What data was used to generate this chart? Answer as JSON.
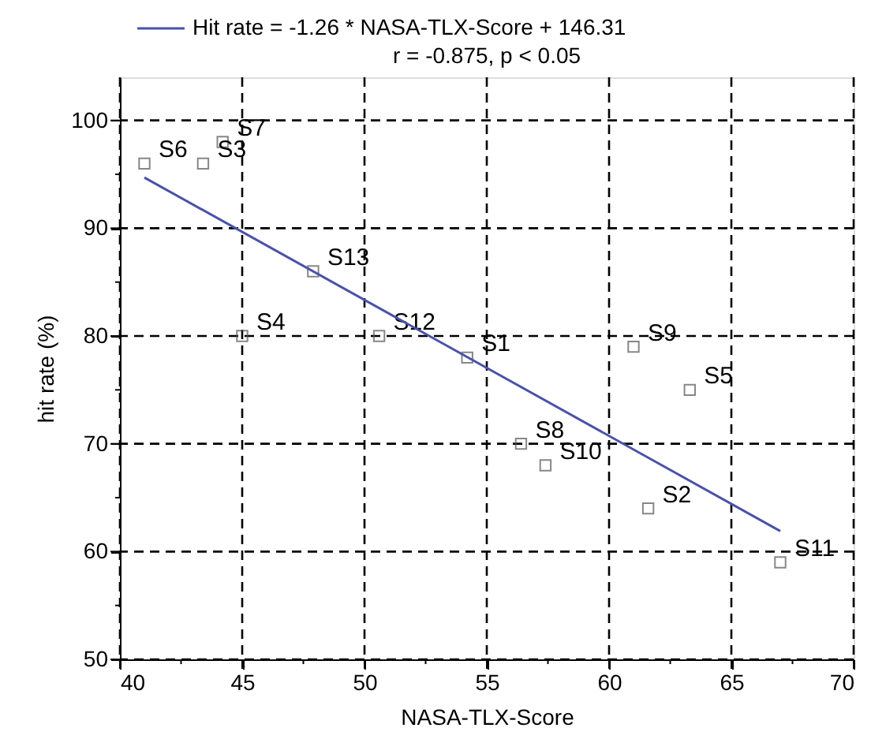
{
  "chart_data": {
    "type": "scatter",
    "xlabel": "NASA-TLX-Score",
    "ylabel": "hit rate (%)",
    "annotations": [
      "r = -0.875, p < 0.05"
    ],
    "series": [
      {
        "color": "#555555",
        "marker": "square",
        "x": [
          54.2,
          61.6,
          43.4,
          45.0,
          63.3,
          41.0,
          44.2,
          56.4,
          61.0,
          57.4,
          67.0,
          50.6,
          47.9
        ],
        "values": [
          78,
          64,
          96,
          80,
          75,
          96,
          98,
          70,
          79,
          68,
          59,
          80,
          86
        ],
        "value_labels": [
          "S1",
          "S2",
          "S3",
          "S4",
          "S5",
          "S6",
          "S7",
          "S8",
          "S9",
          "S10",
          "S11",
          "S12",
          "S13"
        ]
      },
      {
        "type": "line",
        "name": "Hit rate = -1.26 * NASA-TLX-Score + 146.31",
        "color": "#4a52a8",
        "line_style": "solid",
        "marker": "none",
        "x": [
          41,
          67
        ],
        "values": [
          94.7,
          61.9
        ]
      }
    ],
    "xlim": [
      40,
      70
    ],
    "ylim": [
      50,
      104
    ],
    "xticks": [
      40,
      {
        "value": 42.5,
        "label": null
      },
      45,
      {
        "value": 47.5,
        "label": null
      },
      50,
      {
        "value": 52.5,
        "label": null
      },
      55,
      {
        "value": 57.5,
        "label": null
      },
      60,
      {
        "value": 62.5,
        "label": null
      },
      65,
      {
        "value": 67.5,
        "label": null
      },
      70
    ],
    "yticks": [
      50,
      {
        "value": 55,
        "label": null
      },
      60,
      {
        "value": 65,
        "label": null
      },
      70,
      {
        "value": 75,
        "label": null
      },
      80,
      {
        "value": 85,
        "label": null
      },
      90,
      {
        "value": 95,
        "label": null
      },
      100
    ],
    "grid": true,
    "legend": "top"
  }
}
